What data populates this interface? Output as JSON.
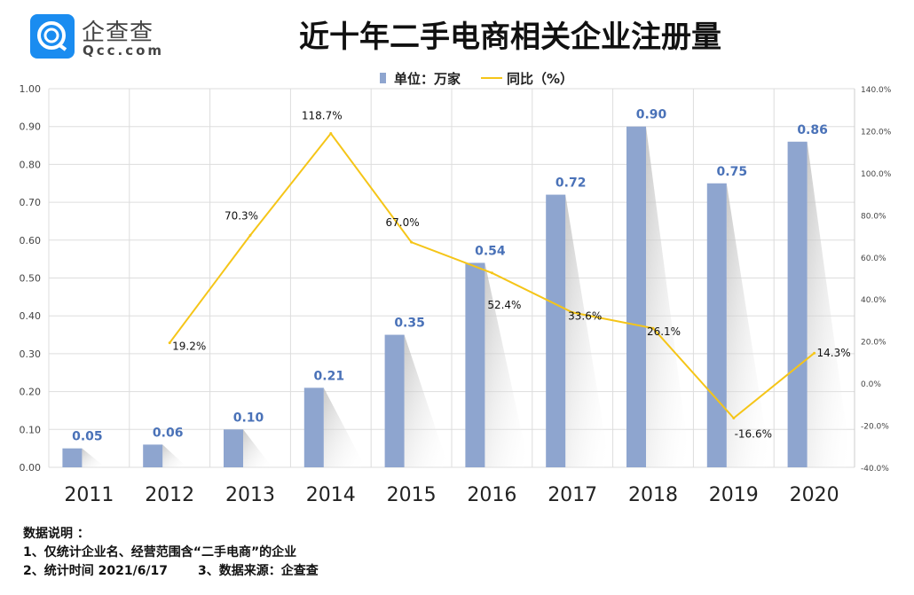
{
  "title": "近十年二手电商相关企业注册量",
  "logo": {
    "cn": "企查查",
    "en": "Qcc.com"
  },
  "notes": {
    "heading": "数据说明 ：",
    "line1": "1、仅统计企业名、经营范围含“二手电商”的企业",
    "line2a": "2、统计时间  2021/6/17",
    "line2b": "3、数据来源：企查查"
  },
  "chart_data": {
    "type": "bar+line",
    "categories": [
      "2011",
      "2012",
      "2013",
      "2014",
      "2015",
      "2016",
      "2017",
      "2018",
      "2019",
      "2020"
    ],
    "series": [
      {
        "name": "单位：万家",
        "type": "bar",
        "axis": "left",
        "values": [
          0.05,
          0.06,
          0.1,
          0.21,
          0.35,
          0.54,
          0.72,
          0.9,
          0.75,
          0.86
        ],
        "labels": [
          "0.05",
          "0.06",
          "0.10",
          "0.21",
          "0.35",
          "0.54",
          "0.72",
          "0.90",
          "0.75",
          "0.86"
        ],
        "color": "#8ea5cf"
      },
      {
        "name": "同比（%）",
        "type": "line",
        "axis": "right",
        "values": [
          null,
          19.2,
          70.3,
          118.7,
          67.0,
          52.4,
          33.6,
          26.1,
          -16.6,
          14.3
        ],
        "labels": [
          "",
          "19.2%",
          "70.3%",
          "118.7%",
          "67.0%",
          "52.4%",
          "33.6%",
          "26.1%",
          "-16.6%",
          "14.3%"
        ],
        "color": "#f5c518"
      }
    ],
    "left_axis": {
      "range": [
        0,
        1
      ],
      "ticks": [
        "0.00",
        "0.10",
        "0.20",
        "0.30",
        "0.40",
        "0.50",
        "0.60",
        "0.70",
        "0.80",
        "0.90",
        "1.00"
      ]
    },
    "right_axis": {
      "range": [
        -40,
        140
      ],
      "ticks": [
        "-40.0%",
        "-20.0%",
        "0.0%",
        "20.0%",
        "40.0%",
        "60.0%",
        "80.0%",
        "100.0%",
        "120.0%",
        "140.0%"
      ]
    },
    "grid": true,
    "legend": "top-center",
    "label_color": "#4a72b8"
  }
}
